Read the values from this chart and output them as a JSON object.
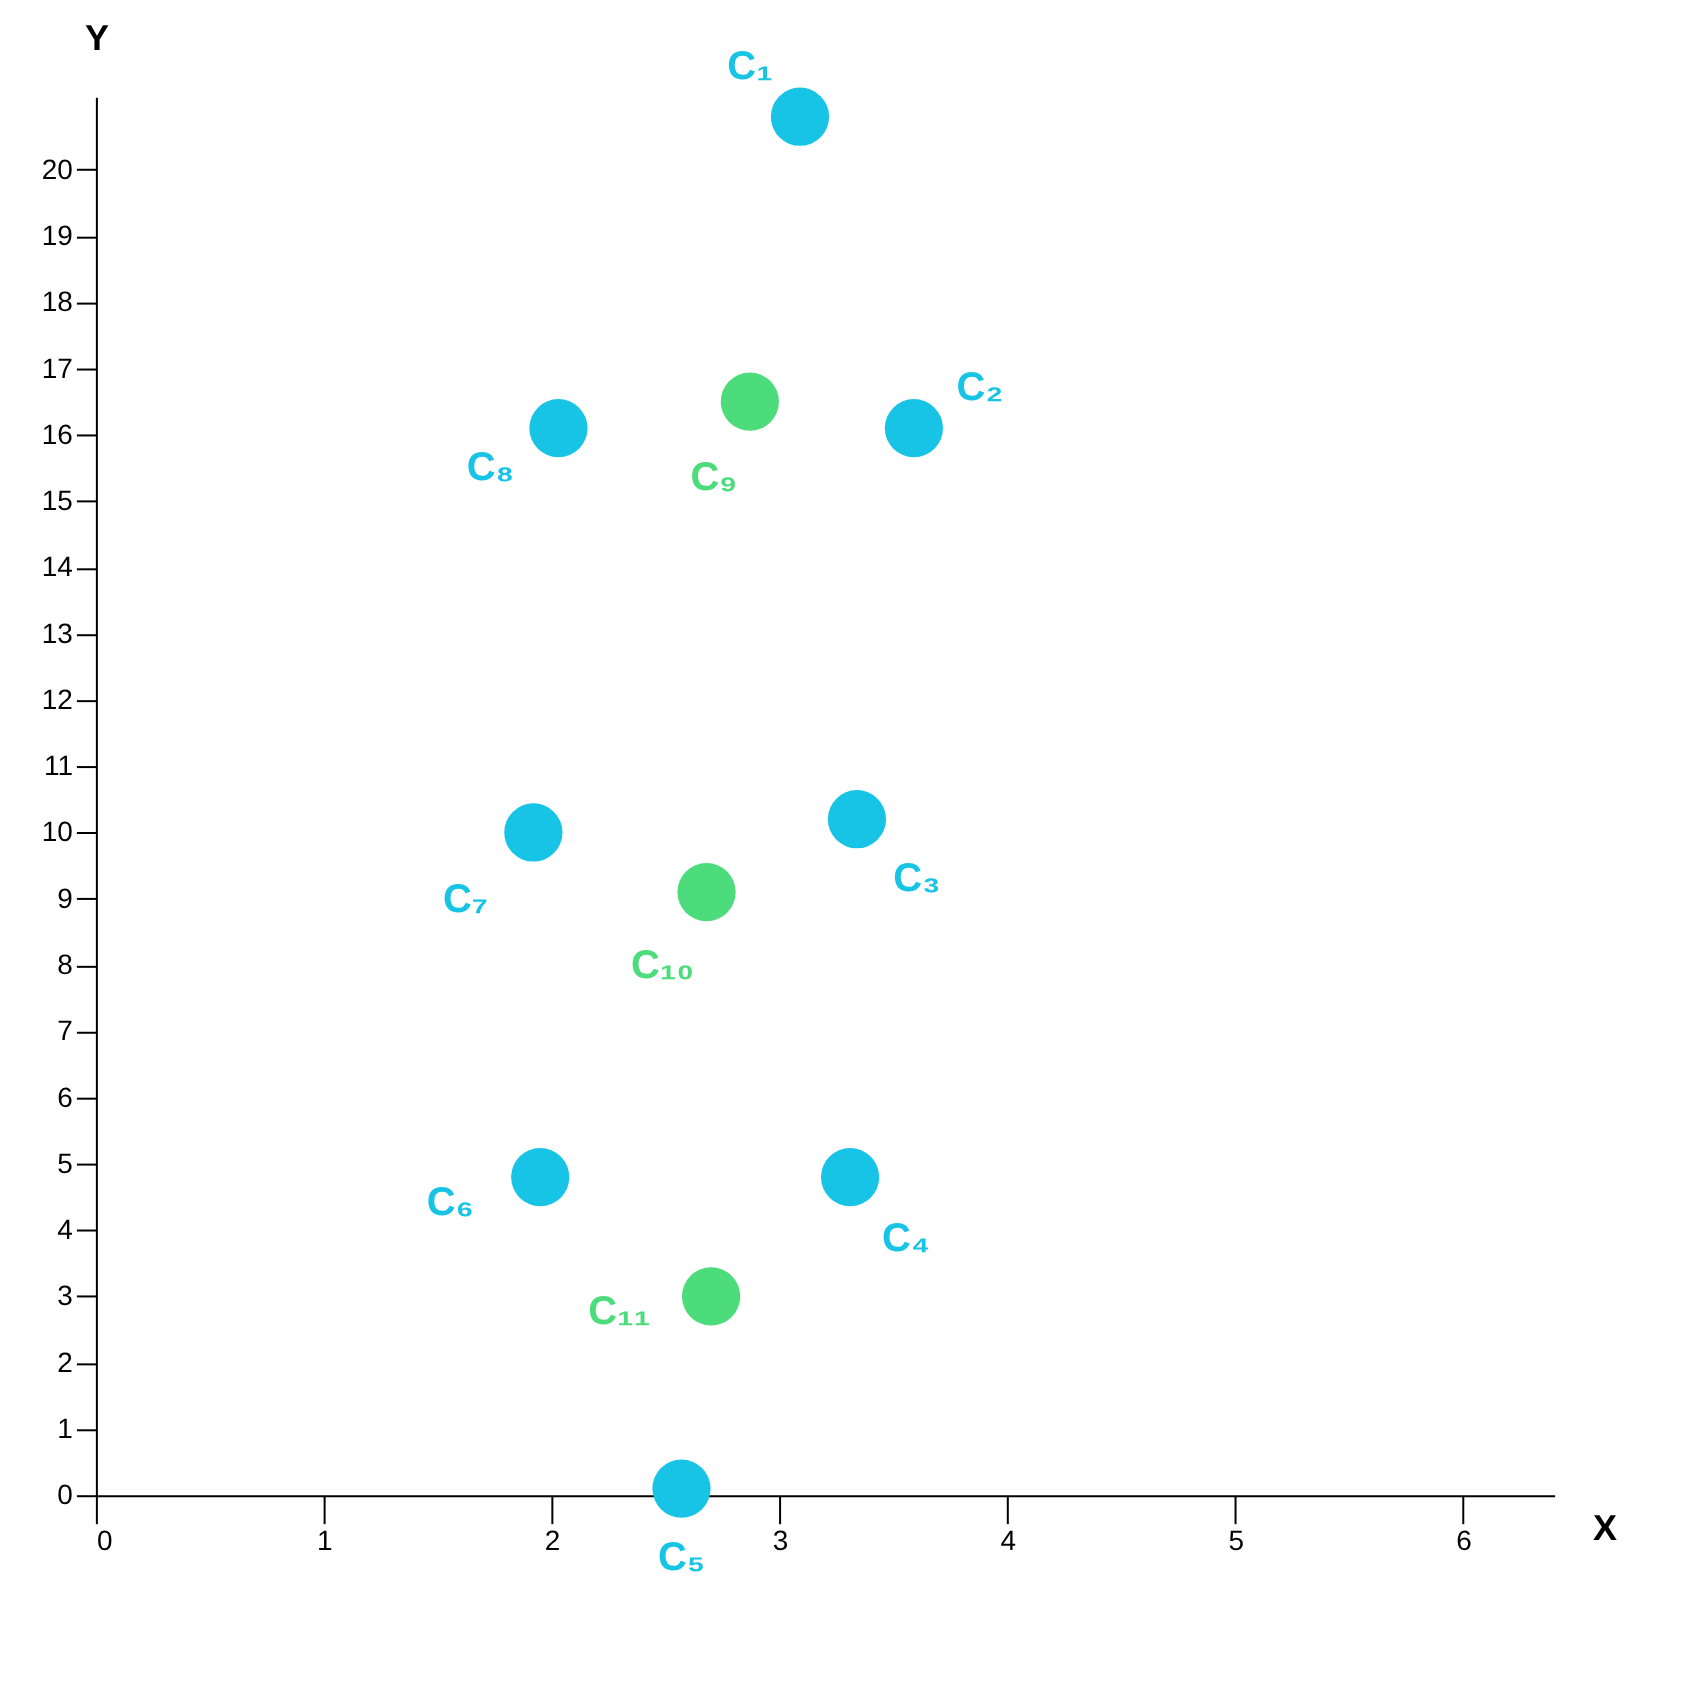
{
  "chart_data": {
    "type": "scatter",
    "xlabel": "X",
    "ylabel": "Y",
    "xlim": [
      0,
      6.4
    ],
    "ylim": [
      0,
      21.1
    ],
    "xticks": [
      0,
      1,
      2,
      3,
      4,
      5,
      6
    ],
    "yticks": [
      0,
      1,
      2,
      3,
      4,
      5,
      6,
      7,
      8,
      9,
      10,
      11,
      12,
      13,
      14,
      15,
      16,
      17,
      18,
      19,
      20
    ],
    "grid": false,
    "legend": false,
    "marker": "circle",
    "series": [
      {
        "color": "#17c4e6",
        "x": [
          3.09,
          3.59,
          3.34,
          3.31,
          2.57,
          1.95,
          1.92,
          2.03
        ],
        "values": [
          20.8,
          16.1,
          10.2,
          4.8,
          0.1,
          4.8,
          10.0,
          16.1
        ]
      },
      {
        "color": "#4cdc7c",
        "x": [
          2.87,
          2.68,
          2.7
        ],
        "values": [
          16.5,
          9.1,
          3.0
        ]
      }
    ],
    "annotations": [
      {
        "text": "C₁",
        "x": 3.09,
        "y": 20.8
      },
      {
        "text": "C₂",
        "x": 3.59,
        "y": 16.1
      },
      {
        "text": "C₃",
        "x": 3.34,
        "y": 10.2
      },
      {
        "text": "C₄",
        "x": 3.31,
        "y": 4.8
      },
      {
        "text": "C₅",
        "x": 2.57,
        "y": 0.1
      },
      {
        "text": "C₆",
        "x": 1.95,
        "y": 4.8
      },
      {
        "text": "C₇",
        "x": 1.92,
        "y": 10.0
      },
      {
        "text": "C₈",
        "x": 2.03,
        "y": 16.1
      },
      {
        "text": "C₉",
        "x": 2.87,
        "y": 16.5
      },
      {
        "text": "C₁₀",
        "x": 2.68,
        "y": 9.1
      },
      {
        "text": "C₁₁",
        "x": 2.7,
        "y": 3.0
      }
    ]
  }
}
